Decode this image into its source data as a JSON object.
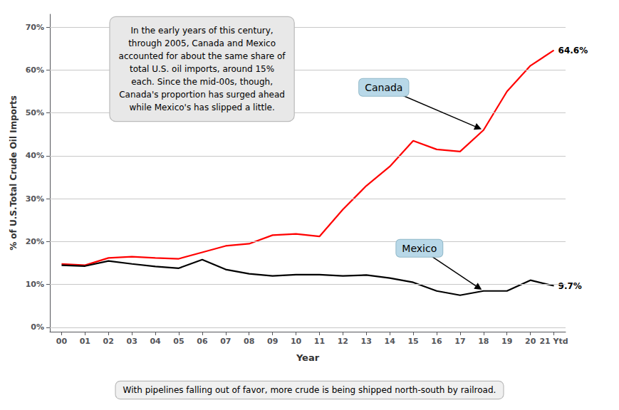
{
  "chart_data": {
    "type": "line",
    "categories": [
      "00",
      "01",
      "02",
      "03",
      "04",
      "05",
      "06",
      "07",
      "08",
      "09",
      "10",
      "11",
      "12",
      "13",
      "14",
      "15",
      "16",
      "17",
      "18",
      "19",
      "20",
      "21 Ytd"
    ],
    "series": [
      {
        "name": "Canada",
        "color": "#ff0000",
        "values": [
          14.8,
          14.5,
          16.2,
          16.5,
          16.2,
          16.0,
          17.5,
          19.0,
          19.5,
          21.5,
          21.8,
          21.2,
          27.5,
          33.0,
          37.5,
          43.5,
          41.5,
          41.0,
          46.0,
          55.0,
          61.0,
          64.6
        ],
        "value_labels": [
          null,
          null,
          null,
          null,
          null,
          null,
          null,
          null,
          null,
          null,
          null,
          null,
          null,
          null,
          null,
          null,
          null,
          null,
          null,
          null,
          null,
          "64.6%"
        ]
      },
      {
        "name": "Mexico",
        "color": "#000000",
        "values": [
          14.5,
          14.3,
          15.5,
          14.8,
          14.2,
          13.8,
          15.8,
          13.5,
          12.5,
          12.0,
          12.3,
          12.3,
          12.0,
          12.2,
          11.5,
          10.5,
          8.5,
          7.5,
          8.5,
          8.5,
          11.0,
          9.7
        ],
        "value_labels": [
          null,
          null,
          null,
          null,
          null,
          null,
          null,
          null,
          null,
          null,
          null,
          null,
          null,
          null,
          null,
          null,
          null,
          null,
          null,
          null,
          null,
          "9.7%"
        ]
      }
    ],
    "xlabel": "Year",
    "ylabel": "% of U.S.Total Crude Oil Imports",
    "ylim": [
      -1,
      73
    ],
    "yticks": [
      {
        "value": 0,
        "label": "0%"
      },
      {
        "value": 10,
        "label": "10%"
      },
      {
        "value": 20,
        "label": "20%"
      },
      {
        "value": 30,
        "label": "30%"
      },
      {
        "value": 40,
        "label": "40%"
      },
      {
        "value": 50,
        "label": "50%"
      },
      {
        "value": 60,
        "label": "60%"
      },
      {
        "value": 70,
        "label": "70%"
      }
    ],
    "grid": true,
    "annotations": [
      {
        "text": "In the early years of this century,\nthrough 2005, Canada and Mexico\naccounted for about the same share of\ntotal U.S. oil imports, around 15%\neach. Since the mid-00s, though,\nCanada's proportion has surged ahead\nwhile Mexico's has slipped a little."
      },
      {
        "text": "Canada",
        "series": "Canada"
      },
      {
        "text": "Mexico",
        "series": "Mexico"
      }
    ],
    "note": "With pipelines falling out of favor, more crude is being shipped north-south by railroad."
  }
}
